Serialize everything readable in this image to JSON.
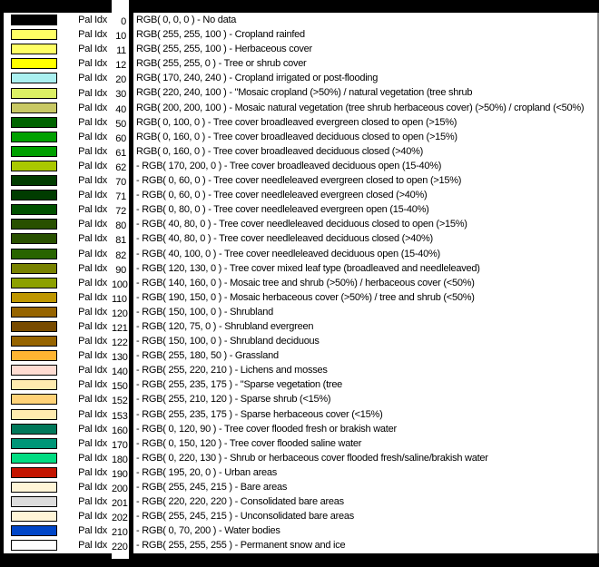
{
  "colors": {
    "background": "#000000",
    "pane": "#ffffff",
    "text": "#000000",
    "right_border": "#8a8a8a"
  },
  "legend": {
    "pal_label": "Pal Idx",
    "rows": [
      {
        "idx": "0",
        "color": "rgb(0,0,0)",
        "text": "RGB( 0, 0, 0 ) - No data"
      },
      {
        "idx": "10",
        "color": "rgb(255,255,100)",
        "text": "RGB( 255, 255, 100 ) - Cropland rainfed"
      },
      {
        "idx": "11",
        "color": "rgb(255,255,100)",
        "text": "RGB( 255, 255, 100 ) - Herbaceous cover"
      },
      {
        "idx": "12",
        "color": "rgb(255,255,0)",
        "text": "RGB( 255, 255, 0 ) - Tree or shrub cover"
      },
      {
        "idx": "20",
        "color": "rgb(170,240,240)",
        "text": "RGB( 170, 240, 240 ) - Cropland irrigated or post-flooding"
      },
      {
        "idx": "30",
        "color": "rgb(220,240,100)",
        "text": "RGB( 220, 240, 100 ) - \"Mosaic cropland (>50%) / natural vegetation (tree shrub"
      },
      {
        "idx": "40",
        "color": "rgb(200,200,100)",
        "text": "RGB( 200, 200, 100 ) - Mosaic natural vegetation (tree shrub herbaceous cover) (>50%) / cropland (<50%)"
      },
      {
        "idx": "50",
        "color": "rgb(0,100,0)",
        "text": "RGB( 0, 100, 0 ) - Tree cover broadleaved evergreen closed to open (>15%)"
      },
      {
        "idx": "60",
        "color": "rgb(0,160,0)",
        "text": "RGB( 0, 160, 0 ) - Tree cover broadleaved deciduous closed to open (>15%)"
      },
      {
        "idx": "61",
        "color": "rgb(0,160,0)",
        "text": "RGB( 0, 160, 0 ) - Tree cover broadleaved deciduous closed (>40%)"
      },
      {
        "idx": "62",
        "color": "rgb(170,200,0)",
        "text": "- RGB( 170, 200, 0 ) - Tree cover broadleaved deciduous open (15-40%)"
      },
      {
        "idx": "70",
        "color": "rgb(0,60,0)",
        "text": "- RGB( 0, 60, 0 ) - Tree cover needleleaved evergreen closed to open (>15%)"
      },
      {
        "idx": "71",
        "color": "rgb(0,60,0)",
        "text": "- RGB( 0, 60, 0 ) - Tree cover needleleaved evergreen closed (>40%)"
      },
      {
        "idx": "72",
        "color": "rgb(0,80,0)",
        "text": "- RGB( 0, 80, 0 ) - Tree cover needleleaved evergreen open (15-40%)"
      },
      {
        "idx": "80",
        "color": "rgb(40,80,0)",
        "text": "- RGB( 40, 80, 0 ) - Tree cover needleleaved deciduous closed to open (>15%)"
      },
      {
        "idx": "81",
        "color": "rgb(40,80,0)",
        "text": "- RGB( 40, 80, 0 ) - Tree cover needleleaved deciduous closed (>40%)"
      },
      {
        "idx": "82",
        "color": "rgb(40,100,0)",
        "text": "- RGB( 40, 100, 0 ) - Tree cover needleleaved deciduous open (15-40%)"
      },
      {
        "idx": "90",
        "color": "rgb(120,130,0)",
        "text": "- RGB( 120, 130, 0 ) - Tree cover mixed leaf type (broadleaved and needleleaved)"
      },
      {
        "idx": "100",
        "color": "rgb(140,160,0)",
        "text": "- RGB( 140, 160, 0 ) - Mosaic tree and shrub (>50%) / herbaceous cover (<50%)"
      },
      {
        "idx": "110",
        "color": "rgb(190,150,0)",
        "text": "- RGB( 190, 150, 0 ) - Mosaic herbaceous cover (>50%) / tree and shrub (<50%)"
      },
      {
        "idx": "120",
        "color": "rgb(150,100,0)",
        "text": "- RGB( 150, 100, 0 ) - Shrubland"
      },
      {
        "idx": "121",
        "color": "rgb(120,75,0)",
        "text": "- RGB( 120, 75, 0 ) - Shrubland evergreen"
      },
      {
        "idx": "122",
        "color": "rgb(150,100,0)",
        "text": "- RGB( 150, 100, 0 ) - Shrubland deciduous"
      },
      {
        "idx": "130",
        "color": "rgb(255,180,50)",
        "text": "- RGB( 255, 180, 50 ) - Grassland"
      },
      {
        "idx": "140",
        "color": "rgb(255,220,210)",
        "text": "- RGB( 255, 220, 210 ) - Lichens and mosses"
      },
      {
        "idx": "150",
        "color": "rgb(255,235,175)",
        "text": "- RGB( 255, 235, 175 ) - \"Sparse vegetation (tree"
      },
      {
        "idx": "152",
        "color": "rgb(255,210,120)",
        "text": "- RGB( 255, 210, 120 ) - Sparse shrub (<15%)"
      },
      {
        "idx": "153",
        "color": "rgb(255,235,175)",
        "text": "- RGB( 255, 235, 175 ) - Sparse herbaceous cover (<15%)"
      },
      {
        "idx": "160",
        "color": "rgb(0,120,90)",
        "text": "- RGB( 0, 120, 90 ) - Tree cover flooded fresh or brakish water"
      },
      {
        "idx": "170",
        "color": "rgb(0,150,120)",
        "text": "- RGB( 0, 150, 120 ) - Tree cover flooded saline water"
      },
      {
        "idx": "180",
        "color": "rgb(0,220,130)",
        "text": "- RGB( 0, 220, 130 ) - Shrub or herbaceous cover flooded fresh/saline/brakish water"
      },
      {
        "idx": "190",
        "color": "rgb(195,20,0)",
        "text": "- RGB( 195, 20, 0 ) - Urban areas"
      },
      {
        "idx": "200",
        "color": "rgb(255,245,215)",
        "text": "- RGB( 255, 245, 215 ) - Bare areas"
      },
      {
        "idx": "201",
        "color": "rgb(220,220,220)",
        "text": "- RGB( 220, 220, 220 ) - Consolidated bare areas"
      },
      {
        "idx": "202",
        "color": "rgb(255,245,215)",
        "text": "- RGB( 255, 245, 215 ) - Unconsolidated bare areas"
      },
      {
        "idx": "210",
        "color": "rgb(0,70,200)",
        "text": "- RGB( 0, 70, 200 ) - Water bodies"
      },
      {
        "idx": "220",
        "color": "rgb(255,255,255)",
        "text": "- RGB( 255, 255, 255 ) - Permanent snow and ice"
      }
    ]
  }
}
